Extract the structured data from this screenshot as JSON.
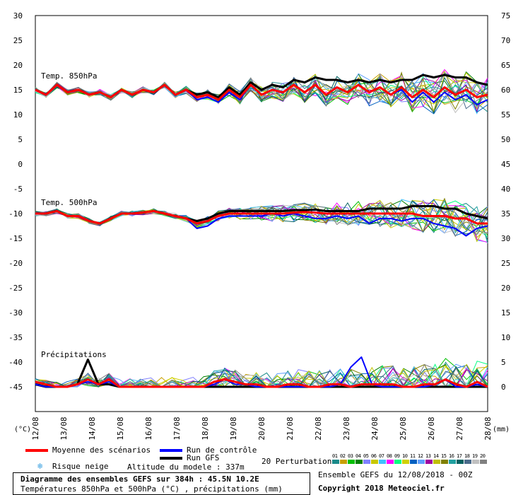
{
  "chart_data": {
    "type": "line",
    "dates": [
      "12/08",
      "13/08",
      "14/08",
      "15/08",
      "16/08",
      "17/08",
      "18/08",
      "19/08",
      "20/08",
      "21/08",
      "22/08",
      "23/08",
      "24/08",
      "25/08",
      "26/08",
      "27/08",
      "28/08"
    ],
    "left_ticks": [
      "30",
      "25",
      "20",
      "15",
      "10",
      "5",
      "0",
      "-5",
      "-10",
      "-15",
      "-20",
      "-25",
      "-30",
      "-35",
      "-40",
      "-45"
    ],
    "right_ticks": [
      "75",
      "70",
      "65",
      "60",
      "55",
      "50",
      "45",
      "40",
      "35",
      "30",
      "25",
      "20",
      "15",
      "10",
      "5",
      "0"
    ],
    "left_unit": "(°C)",
    "right_unit": "(mm)",
    "panels": {
      "t850": {
        "label": "Temp. 850hPa",
        "mean": [
          15,
          14,
          16,
          14.5,
          15,
          14,
          14.5,
          13.5,
          15,
          14,
          15,
          14.5,
          16,
          14,
          15,
          13.5,
          14,
          13,
          15,
          13.5,
          16,
          14,
          15,
          14.5,
          16,
          14.5,
          16,
          14,
          15.5,
          14.5,
          16,
          14.5,
          15.5,
          14,
          15.5,
          13.5,
          15,
          13.5,
          15.5,
          14,
          15,
          13.5,
          14
        ],
        "control": [
          15,
          14,
          16,
          14.5,
          15,
          14,
          14.5,
          13.5,
          15,
          14,
          15,
          14.5,
          16,
          14,
          15,
          13,
          13.5,
          12.5,
          14.5,
          13,
          16,
          14,
          15,
          14.5,
          16,
          14.5,
          16,
          14,
          15.5,
          14.5,
          16,
          14.5,
          15.5,
          14,
          15,
          12.5,
          14.5,
          12.5,
          14.5,
          13,
          14,
          12,
          13
        ],
        "gfs": [
          15,
          14,
          16,
          14.5,
          15,
          14,
          14.5,
          13.5,
          15,
          14,
          15,
          14.5,
          16,
          14,
          15,
          14,
          14.5,
          13.5,
          15.5,
          14,
          16.5,
          15,
          16,
          15.5,
          17,
          16.5,
          17.5,
          17,
          17,
          16.5,
          17,
          16.5,
          17,
          16.5,
          17,
          17,
          18,
          17.5,
          18,
          17.5,
          17.5,
          16.5,
          16
        ]
      },
      "t500": {
        "label": "Temp. 500hPa",
        "mean": [
          -10,
          -10,
          -9.5,
          -10.5,
          -10.5,
          -11.5,
          -12,
          -11,
          -10,
          -10,
          -9.8,
          -9.5,
          -10,
          -10.5,
          -11,
          -12,
          -11.5,
          -10.5,
          -10,
          -10,
          -10,
          -10,
          -10,
          -10,
          -9.8,
          -9.7,
          -9.8,
          -10,
          -10,
          -10,
          -10,
          -10,
          -10,
          -10,
          -10,
          -10,
          -10.5,
          -10.5,
          -10.5,
          -11,
          -11,
          -12,
          -12
        ],
        "control": [
          -10,
          -10,
          -9.5,
          -10.5,
          -10.5,
          -11.5,
          -12,
          -11,
          -10,
          -10,
          -9.8,
          -9.5,
          -10,
          -10.5,
          -11,
          -13,
          -12.5,
          -11,
          -10.5,
          -10.5,
          -10.5,
          -10.5,
          -10,
          -10.5,
          -10,
          -10.5,
          -11,
          -11,
          -10.5,
          -11,
          -10.5,
          -12,
          -11,
          -11,
          -11.5,
          -11,
          -11,
          -12,
          -12.5,
          -13,
          -14.5,
          -13,
          -12.5
        ],
        "gfs": [
          -10,
          -10,
          -9.5,
          -10.5,
          -10.5,
          -11.5,
          -12,
          -11,
          -10,
          -10,
          -9.8,
          -9.5,
          -10,
          -10.5,
          -11,
          -11.5,
          -11,
          -10,
          -9.5,
          -9.5,
          -9.5,
          -9.5,
          -9.5,
          -9.5,
          -9.3,
          -9.3,
          -9.2,
          -9.5,
          -9.5,
          -9.5,
          -9.5,
          -9,
          -9,
          -9,
          -9,
          -8.5,
          -8.5,
          -8.5,
          -9,
          -9,
          -10,
          -10.5,
          -11
        ]
      },
      "precip": {
        "label": "Précipitations",
        "mean": [
          1,
          0.5,
          0,
          0,
          0.5,
          1.5,
          0.5,
          1.5,
          0,
          0,
          0,
          0,
          0,
          0,
          0,
          0,
          0,
          1,
          1.5,
          1,
          0.5,
          0.5,
          0,
          0,
          0.5,
          0.5,
          0,
          0,
          0.5,
          0.5,
          0,
          0.5,
          0.5,
          0.5,
          0.5,
          0,
          0,
          0.5,
          0.5,
          1.5,
          0.5,
          0,
          1,
          0
        ],
        "control": [
          0.5,
          0,
          0,
          0,
          0.5,
          1,
          0.5,
          1,
          0,
          0,
          0,
          0,
          0,
          0,
          0,
          0,
          0,
          0.5,
          1.5,
          0.5,
          0.5,
          0,
          0,
          0,
          0,
          0,
          0,
          0,
          0,
          0.5,
          4,
          6,
          0.5,
          0,
          0,
          0,
          0,
          0,
          0.5,
          1.5,
          0,
          0,
          0.5,
          0
        ],
        "gfs": [
          0.5,
          0,
          0,
          0,
          0.5,
          5.5,
          0.5,
          0.5,
          0,
          0,
          0,
          0,
          0,
          0,
          0,
          0,
          0,
          0,
          0,
          0,
          0,
          0,
          0,
          0,
          0,
          0,
          0,
          0,
          0,
          0,
          0,
          0,
          0,
          0,
          0,
          0,
          0,
          0,
          0,
          0,
          0,
          0,
          0,
          0
        ]
      }
    }
  },
  "legend": {
    "mean_label": "Moyenne des scénarios",
    "control_label": "Run de contrôle",
    "gfs_label": "Run GFS",
    "pert_label": "20 Perturbations",
    "snow_label": "Risque neige",
    "altitude_label": "Altitude du modele : 337m",
    "mean_color": "#ff0000",
    "control_color": "#0000ff",
    "gfs_color": "#000000",
    "pert_numbers": [
      "01",
      "02",
      "03",
      "04",
      "05",
      "06",
      "07",
      "08",
      "09",
      "10",
      "11",
      "12",
      "13",
      "14",
      "15",
      "16",
      "17",
      "18",
      "19",
      "20"
    ],
    "pert_colors": [
      "#1a8a8a",
      "#c8a000",
      "#00c000",
      "#008000",
      "#8080ff",
      "#c8c800",
      "#40c0ff",
      "#ff00ff",
      "#00ff80",
      "#d0d000",
      "#0060c0",
      "#60a0ff",
      "#a000a0",
      "#c0c000",
      "#808000",
      "#20a0a0",
      "#006060",
      "#4a6a8a",
      "#c0c0c0",
      "#808080"
    ]
  },
  "info": {
    "title": "Diagramme des ensembles GEFS sur 384h : 45.5N 10.2E",
    "subtitle": "Températures 850hPa et 500hPa (°C) , précipitations (mm)",
    "run_label": "Ensemble GEFS du 12/08/2018 - 00Z",
    "copyright": "Copyright 2018 Meteociel.fr"
  }
}
